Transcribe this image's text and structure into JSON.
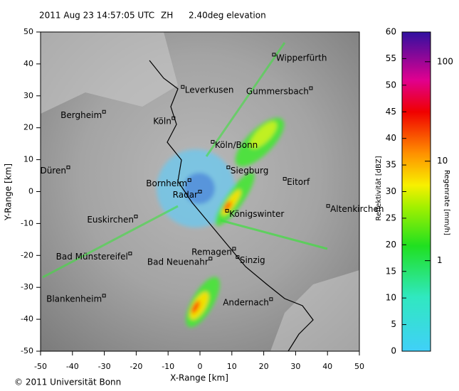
{
  "chart_data": {
    "type": "map",
    "title": "2011 Aug 23 14:57:05 UTC",
    "subtitle": "ZH",
    "elevation": "2.40deg elevation",
    "x_label": "X-Range [km]",
    "y_label": "Y-Range [km]",
    "xlim": [
      -50,
      50
    ],
    "ylim": [
      -50,
      50
    ],
    "xticks": [
      -50,
      -40,
      -30,
      -20,
      -10,
      0,
      10,
      20,
      30,
      40,
      50
    ],
    "yticks": [
      -50,
      -40,
      -30,
      -20,
      -10,
      0,
      10,
      20,
      30,
      40,
      50
    ],
    "cities": [
      {
        "name": "Wipperfürth",
        "x": 23.2,
        "y": 42.9
      },
      {
        "name": "Leverkusen",
        "x": -5.4,
        "y": 32.8
      },
      {
        "name": "Gummersbach",
        "x": 34.8,
        "y": 32.4
      },
      {
        "name": "Bergheim",
        "x": -30.1,
        "y": 25
      },
      {
        "name": "Köln",
        "x": -8.3,
        "y": 23
      },
      {
        "name": "Köln/Bonn",
        "x": 4,
        "y": 15.6
      },
      {
        "name": "Düren",
        "x": -41.3,
        "y": 7.6
      },
      {
        "name": "Siegburg",
        "x": 8.9,
        "y": 7.6
      },
      {
        "name": "Eitorf",
        "x": 26.6,
        "y": 4
      },
      {
        "name": "Bornheim",
        "x": -3.3,
        "y": 3.6
      },
      {
        "name": "Radar",
        "x": 0,
        "y": 0
      },
      {
        "name": "Königswinter",
        "x": 8.5,
        "y": -6
      },
      {
        "name": "Altenkirchen",
        "x": 40.2,
        "y": -4.5
      },
      {
        "name": "Euskirchen",
        "x": -20.1,
        "y": -7.8
      },
      {
        "name": "Remagen",
        "x": 10.7,
        "y": -17.9
      },
      {
        "name": "Bad Münstereifel",
        "x": -21.9,
        "y": -19.4
      },
      {
        "name": "Bad Neuenahr",
        "x": 3.3,
        "y": -21
      },
      {
        "name": "Sinzig",
        "x": 11.8,
        "y": -20.5
      },
      {
        "name": "Blankenheim",
        "x": -30.1,
        "y": -32.6
      },
      {
        "name": "Andernach",
        "x": 22.3,
        "y": -33.7
      }
    ],
    "colorbar": {
      "label": "Reflektivität [dBZ]",
      "ylim": [
        0,
        60
      ],
      "yticks": [
        0,
        5,
        10,
        15,
        20,
        25,
        30,
        35,
        40,
        45,
        50,
        55,
        60
      ],
      "y2_label": "Regenrate [mm/h]",
      "y2scale": "log",
      "y2lim": [
        0.123,
        199
      ],
      "y2ticks": [
        1,
        10,
        100
      ]
    },
    "footer": "© 2011 Universität Bonn"
  }
}
